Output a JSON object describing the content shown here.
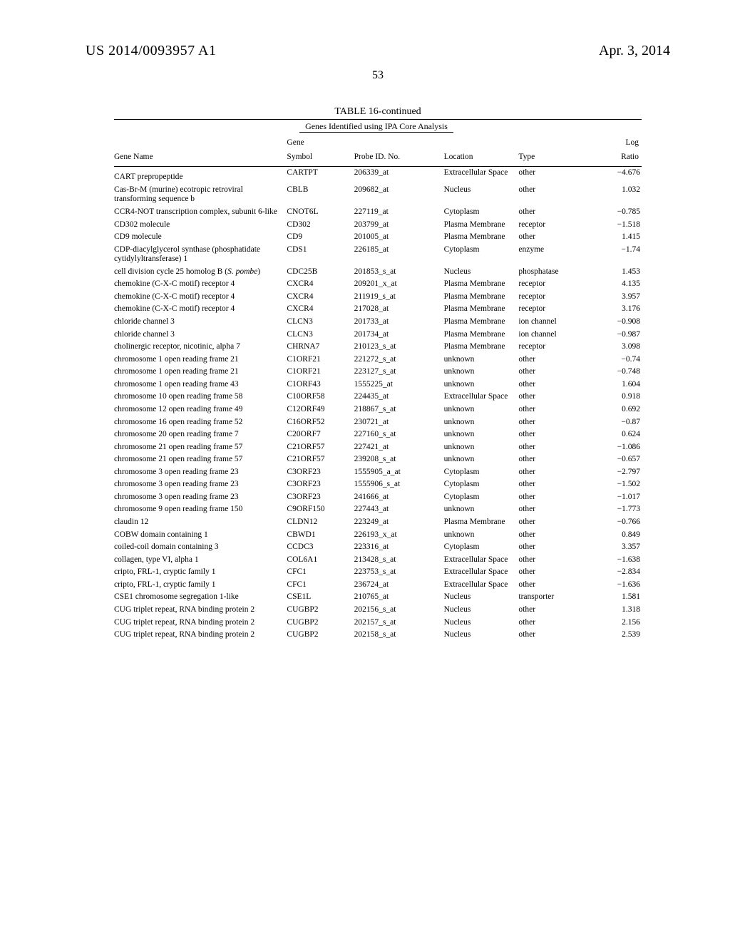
{
  "header": {
    "pub_number": "US 2014/0093957 A1",
    "pub_date": "Apr. 3, 2014",
    "page_number": "53"
  },
  "table": {
    "title": "TABLE 16-continued",
    "subtitle": "Genes Identified using IPA Core Analysis",
    "columns": {
      "gene_name": "Gene Name",
      "gene_symbol_1": "Gene",
      "gene_symbol_2": "Symbol",
      "probe": "Probe ID. No.",
      "location": "Location",
      "type": "Type",
      "log_1": "Log",
      "log_2": "Ratio"
    },
    "rows": [
      {
        "name": "CART prepropeptide",
        "sym": "CARTPT",
        "probe": "206339_at",
        "loc": "Extracellular Space",
        "type": "other",
        "ratio": "−4.676"
      },
      {
        "name": "Cas-Br-M (murine) ecotropic retroviral transforming sequence b",
        "sym": "CBLB",
        "probe": "209682_at",
        "loc": "Nucleus",
        "type": "other",
        "ratio": "1.032"
      },
      {
        "name": "CCR4-NOT transcription complex, subunit 6-like",
        "sym": "CNOT6L",
        "probe": "227119_at",
        "loc": "Cytoplasm",
        "type": "other",
        "ratio": "−0.785"
      },
      {
        "name": "CD302 molecule",
        "sym": "CD302",
        "probe": "203799_at",
        "loc": "Plasma Membrane",
        "type": "receptor",
        "ratio": "−1.518"
      },
      {
        "name": "CD9 molecule",
        "sym": "CD9",
        "probe": "201005_at",
        "loc": "Plasma Membrane",
        "type": "other",
        "ratio": "1.415"
      },
      {
        "name": "CDP-diacylglycerol synthase (phosphatidate cytidylyltransferase) 1",
        "sym": "CDS1",
        "probe": "226185_at",
        "loc": "Cytoplasm",
        "type": "enzyme",
        "ratio": "−1.74"
      },
      {
        "name_html": "cell division cycle 25 homolog B (<span class=\"italic\">S. pombe</span>)",
        "sym": "CDC25B",
        "probe": "201853_s_at",
        "loc": "Nucleus",
        "type": "phosphatase",
        "ratio": "1.453"
      },
      {
        "name": "chemokine (C-X-C motif) receptor 4",
        "sym": "CXCR4",
        "probe": "209201_x_at",
        "loc": "Plasma Membrane",
        "type": "receptor",
        "ratio": "4.135"
      },
      {
        "name": "chemokine (C-X-C motif) receptor 4",
        "sym": "CXCR4",
        "probe": "211919_s_at",
        "loc": "Plasma Membrane",
        "type": "receptor",
        "ratio": "3.957"
      },
      {
        "name": "chemokine (C-X-C motif) receptor 4",
        "sym": "CXCR4",
        "probe": "217028_at",
        "loc": "Plasma Membrane",
        "type": "receptor",
        "ratio": "3.176"
      },
      {
        "name": "chloride channel 3",
        "sym": "CLCN3",
        "probe": "201733_at",
        "loc": "Plasma Membrane",
        "type": "ion channel",
        "ratio": "−0.908"
      },
      {
        "name": "chloride channel 3",
        "sym": "CLCN3",
        "probe": "201734_at",
        "loc": "Plasma Membrane",
        "type": "ion channel",
        "ratio": "−0.987"
      },
      {
        "name": "cholinergic receptor, nicotinic, alpha 7",
        "sym": "CHRNA7",
        "probe": "210123_s_at",
        "loc": "Plasma Membrane",
        "type": "receptor",
        "ratio": "3.098"
      },
      {
        "name": "chromosome 1 open reading frame 21",
        "sym": "C1ORF21",
        "probe": "221272_s_at",
        "loc": "unknown",
        "type": "other",
        "ratio": "−0.74"
      },
      {
        "name": "chromosome 1 open reading frame 21",
        "sym": "C1ORF21",
        "probe": "223127_s_at",
        "loc": "unknown",
        "type": "other",
        "ratio": "−0.748"
      },
      {
        "name": "chromosome 1 open reading frame 43",
        "sym": "C1ORF43",
        "probe": "1555225_at",
        "loc": "unknown",
        "type": "other",
        "ratio": "1.604"
      },
      {
        "name": "chromosome 10 open reading frame 58",
        "sym": "C10ORF58",
        "probe": "224435_at",
        "loc": "Extracellular Space",
        "type": "other",
        "ratio": "0.918"
      },
      {
        "name": "chromosome 12 open reading frame 49",
        "sym": "C12ORF49",
        "probe": "218867_s_at",
        "loc": "unknown",
        "type": "other",
        "ratio": "0.692"
      },
      {
        "name": "chromosome 16 open reading frame 52",
        "sym": "C16ORF52",
        "probe": "230721_at",
        "loc": "unknown",
        "type": "other",
        "ratio": "−0.87"
      },
      {
        "name": "chromosome 20 open reading frame 7",
        "sym": "C20ORF7",
        "probe": "227160_s_at",
        "loc": "unknown",
        "type": "other",
        "ratio": "0.624"
      },
      {
        "name": "chromosome 21 open reading frame 57",
        "sym": "C21ORF57",
        "probe": "227421_at",
        "loc": "unknown",
        "type": "other",
        "ratio": "−1.086"
      },
      {
        "name": "chromosome 21 open reading frame 57",
        "sym": "C21ORF57",
        "probe": "239208_s_at",
        "loc": "unknown",
        "type": "other",
        "ratio": "−0.657"
      },
      {
        "name": "chromosome 3 open reading frame 23",
        "sym": "C3ORF23",
        "probe": "1555905_a_at",
        "loc": "Cytoplasm",
        "type": "other",
        "ratio": "−2.797"
      },
      {
        "name": "chromosome 3 open reading frame 23",
        "sym": "C3ORF23",
        "probe": "1555906_s_at",
        "loc": "Cytoplasm",
        "type": "other",
        "ratio": "−1.502"
      },
      {
        "name": "chromosome 3 open reading frame 23",
        "sym": "C3ORF23",
        "probe": "241666_at",
        "loc": "Cytoplasm",
        "type": "other",
        "ratio": "−1.017"
      },
      {
        "name": "chromosome 9 open reading frame 150",
        "sym": "C9ORF150",
        "probe": "227443_at",
        "loc": "unknown",
        "type": "other",
        "ratio": "−1.773"
      },
      {
        "name": "claudin 12",
        "sym": "CLDN12",
        "probe": "223249_at",
        "loc": "Plasma Membrane",
        "type": "other",
        "ratio": "−0.766"
      },
      {
        "name": "COBW domain containing 1",
        "sym": "CBWD1",
        "probe": "226193_x_at",
        "loc": "unknown",
        "type": "other",
        "ratio": "0.849"
      },
      {
        "name": "coiled-coil domain containing 3",
        "sym": "CCDC3",
        "probe": "223316_at",
        "loc": "Cytoplasm",
        "type": "other",
        "ratio": "3.357"
      },
      {
        "name": "collagen, type VI, alpha 1",
        "sym": "COL6A1",
        "probe": "213428_s_at",
        "loc": "Extracellular Space",
        "type": "other",
        "ratio": "−1.638"
      },
      {
        "name": "cripto, FRL-1, cryptic family 1",
        "sym": "CFC1",
        "probe": "223753_s_at",
        "loc": "Extracellular Space",
        "type": "other",
        "ratio": "−2.834"
      },
      {
        "name": "cripto, FRL-1, cryptic family 1",
        "sym": "CFC1",
        "probe": "236724_at",
        "loc": "Extracellular Space",
        "type": "other",
        "ratio": "−1.636"
      },
      {
        "name": "CSE1 chromosome segregation 1-like",
        "sym": "CSE1L",
        "probe": "210765_at",
        "loc": "Nucleus",
        "type": "transporter",
        "ratio": "1.581"
      },
      {
        "name": "CUG triplet repeat, RNA binding protein 2",
        "sym": "CUGBP2",
        "probe": "202156_s_at",
        "loc": "Nucleus",
        "type": "other",
        "ratio": "1.318"
      },
      {
        "name": "CUG triplet repeat, RNA binding protein 2",
        "sym": "CUGBP2",
        "probe": "202157_s_at",
        "loc": "Nucleus",
        "type": "other",
        "ratio": "2.156"
      },
      {
        "name": "CUG triplet repeat, RNA binding protein 2",
        "sym": "CUGBP2",
        "probe": "202158_s_at",
        "loc": "Nucleus",
        "type": "other",
        "ratio": "2.539"
      }
    ]
  }
}
